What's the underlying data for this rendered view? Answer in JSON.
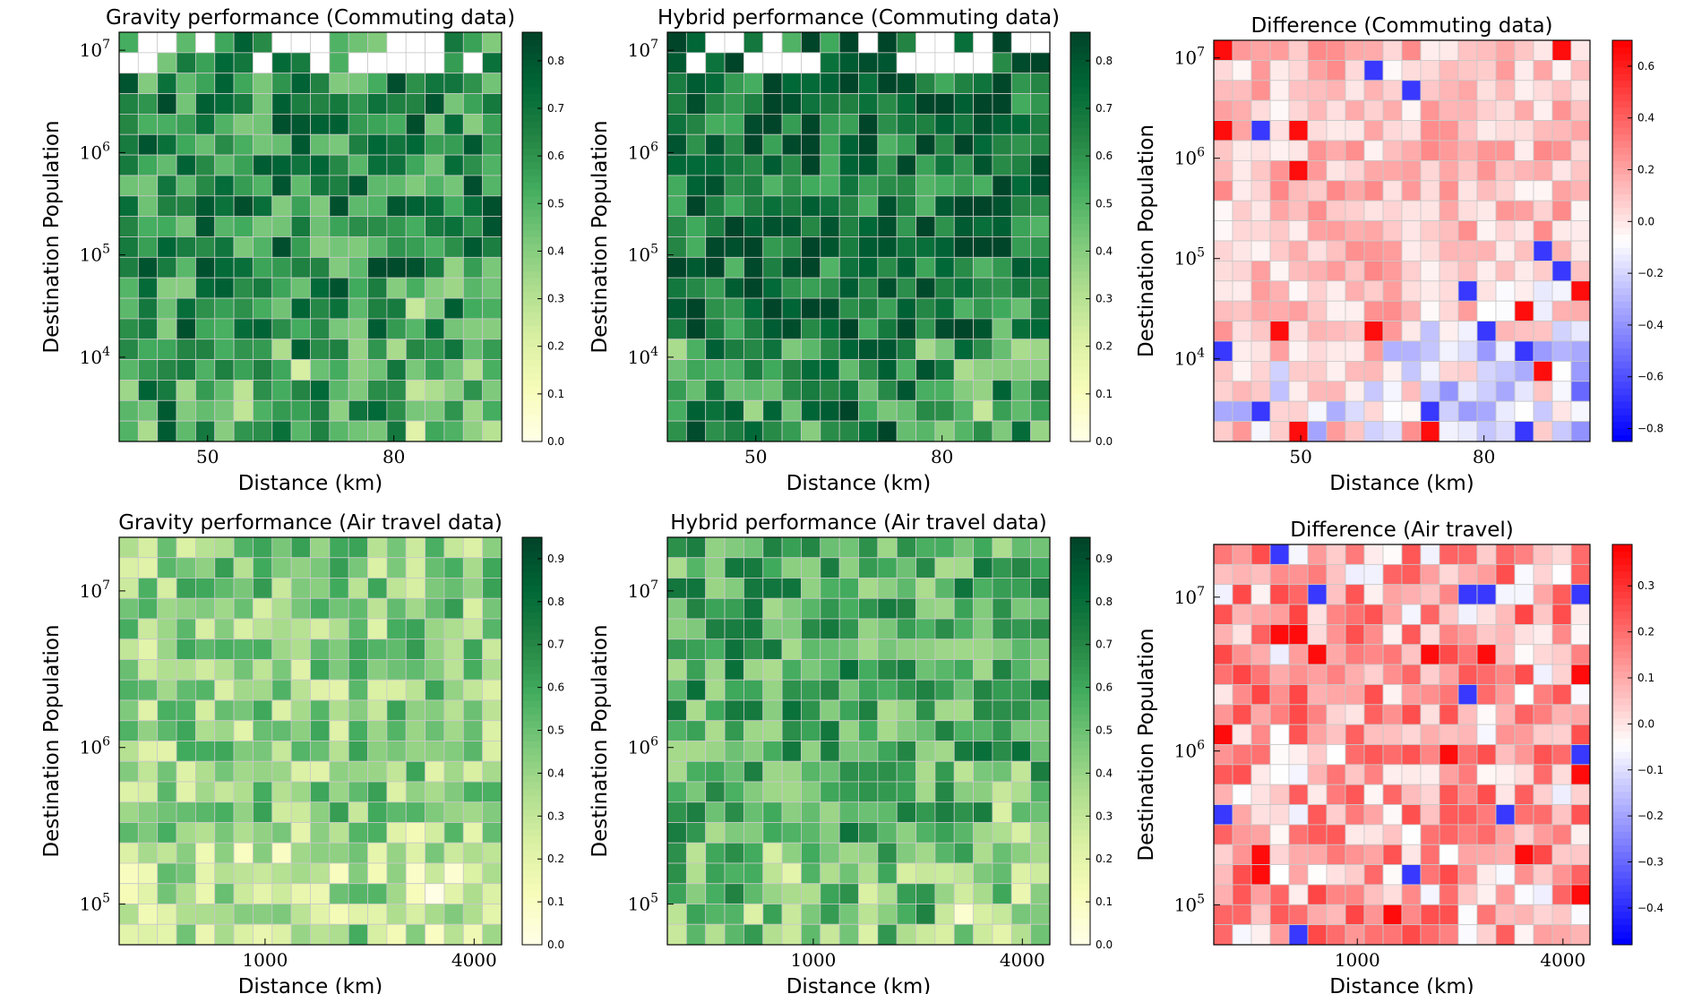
{
  "colors": {
    "greens_low": "#ffffe5",
    "greens_high": "#004529",
    "diverge_low": "#0000ff",
    "diverge_mid": "#ffffff",
    "diverge_high": "#ff0000",
    "cell_edge": "#c8c8c8",
    "empty": "#ffffff"
  },
  "chart_data": [
    {
      "type": "heatmap",
      "title": "Gravity performance (Commuting data)",
      "xlabel": "Distance (km)",
      "ylabel": "Destination Population",
      "x_scale": "log",
      "y_scale": "log",
      "x_ticks": [
        50,
        80
      ],
      "x_tick_labels": [
        "50",
        "80"
      ],
      "y_ticks": [
        10000,
        100000,
        1000000,
        10000000
      ],
      "y_tick_labels": [
        "10^4",
        "10^5",
        "10^6",
        "10^7"
      ],
      "xlim": [
        40,
        105
      ],
      "ylim": [
        1500,
        15000000
      ],
      "colormap": "Greens",
      "vmin": 0.0,
      "vmax": 0.86,
      "colorbar_ticks": [
        "0.0",
        "0.1",
        "0.2",
        "0.3",
        "0.4",
        "0.5",
        "0.6",
        "0.7",
        "0.8"
      ],
      "n_cols": 20,
      "n_rows": 20,
      "empty_top_rows": 2,
      "base": 0.62,
      "cell_seed": 11
    },
    {
      "type": "heatmap",
      "title": "Hybrid performance (Commuting data)",
      "xlabel": "Distance (km)",
      "ylabel": "Destination Population",
      "x_scale": "log",
      "y_scale": "log",
      "x_ticks": [
        50,
        80
      ],
      "x_tick_labels": [
        "50",
        "80"
      ],
      "y_ticks": [
        10000,
        100000,
        1000000,
        10000000
      ],
      "y_tick_labels": [
        "10^4",
        "10^5",
        "10^6",
        "10^7"
      ],
      "xlim": [
        40,
        105
      ],
      "ylim": [
        1500,
        15000000
      ],
      "colormap": "Greens",
      "vmin": 0.0,
      "vmax": 0.86,
      "colorbar_ticks": [
        "0.0",
        "0.1",
        "0.2",
        "0.3",
        "0.4",
        "0.5",
        "0.6",
        "0.7",
        "0.8"
      ],
      "n_cols": 20,
      "n_rows": 20,
      "empty_top_rows": 2,
      "base": 0.72,
      "cell_seed": 23
    },
    {
      "type": "heatmap",
      "title": "Difference (Commuting data)",
      "xlabel": "Distance (km)",
      "ylabel": "Destination Population",
      "x_scale": "log",
      "y_scale": "log",
      "x_ticks": [
        50,
        80
      ],
      "x_tick_labels": [
        "50",
        "80"
      ],
      "y_ticks": [
        10000,
        100000,
        1000000,
        10000000
      ],
      "y_tick_labels": [
        "10^4",
        "10^5",
        "10^6",
        "10^7"
      ],
      "xlim": [
        40,
        105
      ],
      "ylim": [
        1500,
        15000000
      ],
      "colormap": "bwr",
      "vmin": -0.85,
      "vmax": 0.7,
      "colorbar_ticks": [
        "−0.8",
        "−0.6",
        "−0.4",
        "−0.2",
        "0.0",
        "0.2",
        "0.4",
        "0.6"
      ],
      "n_cols": 20,
      "n_rows": 20,
      "empty_top_rows": 0,
      "base": 0.12,
      "cell_seed": 37
    },
    {
      "type": "heatmap",
      "title": "Gravity performance (Air travel data)",
      "xlabel": "Distance (km)",
      "ylabel": "Destination Population",
      "x_scale": "log",
      "y_scale": "log",
      "x_ticks": [
        1000,
        4000
      ],
      "x_tick_labels": [
        "1000",
        "4000"
      ],
      "y_ticks": [
        100000,
        1000000,
        10000000
      ],
      "y_tick_labels": [
        "10^5",
        "10^6",
        "10^7"
      ],
      "xlim": [
        380,
        4800
      ],
      "ylim": [
        55000,
        22000000
      ],
      "colormap": "Greens",
      "vmin": 0.0,
      "vmax": 0.95,
      "colorbar_ticks": [
        "0.0",
        "0.1",
        "0.2",
        "0.3",
        "0.4",
        "0.5",
        "0.6",
        "0.7",
        "0.8",
        "0.9"
      ],
      "n_cols": 20,
      "n_rows": 20,
      "empty_top_rows": 0,
      "base": 0.42,
      "cell_seed": 51
    },
    {
      "type": "heatmap",
      "title": "Hybrid performance (Air travel data)",
      "xlabel": "Distance (km)",
      "ylabel": "Destination Population",
      "x_scale": "log",
      "y_scale": "log",
      "x_ticks": [
        1000,
        4000
      ],
      "x_tick_labels": [
        "1000",
        "4000"
      ],
      "y_ticks": [
        100000,
        1000000,
        10000000
      ],
      "y_tick_labels": [
        "10^5",
        "10^6",
        "10^7"
      ],
      "xlim": [
        380,
        4800
      ],
      "ylim": [
        55000,
        22000000
      ],
      "colormap": "Greens",
      "vmin": 0.0,
      "vmax": 0.95,
      "colorbar_ticks": [
        "0.0",
        "0.1",
        "0.2",
        "0.3",
        "0.4",
        "0.5",
        "0.6",
        "0.7",
        "0.8",
        "0.9"
      ],
      "n_cols": 20,
      "n_rows": 20,
      "empty_top_rows": 0,
      "base": 0.58,
      "cell_seed": 67
    },
    {
      "type": "heatmap",
      "title": "Difference (Air travel)",
      "xlabel": "Distance (km)",
      "ylabel": "Destination Population",
      "x_scale": "log",
      "y_scale": "log",
      "x_ticks": [
        1000,
        4000
      ],
      "x_tick_labels": [
        "1000",
        "4000"
      ],
      "y_ticks": [
        100000,
        1000000,
        10000000
      ],
      "y_tick_labels": [
        "10^5",
        "10^6",
        "10^7"
      ],
      "xlim": [
        380,
        4800
      ],
      "ylim": [
        55000,
        22000000
      ],
      "colormap": "bwr",
      "vmin": -0.48,
      "vmax": 0.39,
      "colorbar_ticks": [
        "−0.4",
        "−0.3",
        "−0.2",
        "−0.1",
        "0.0",
        "0.1",
        "0.2",
        "0.3"
      ],
      "n_cols": 20,
      "n_rows": 20,
      "empty_top_rows": 0,
      "base": 0.1,
      "cell_seed": 79
    }
  ]
}
